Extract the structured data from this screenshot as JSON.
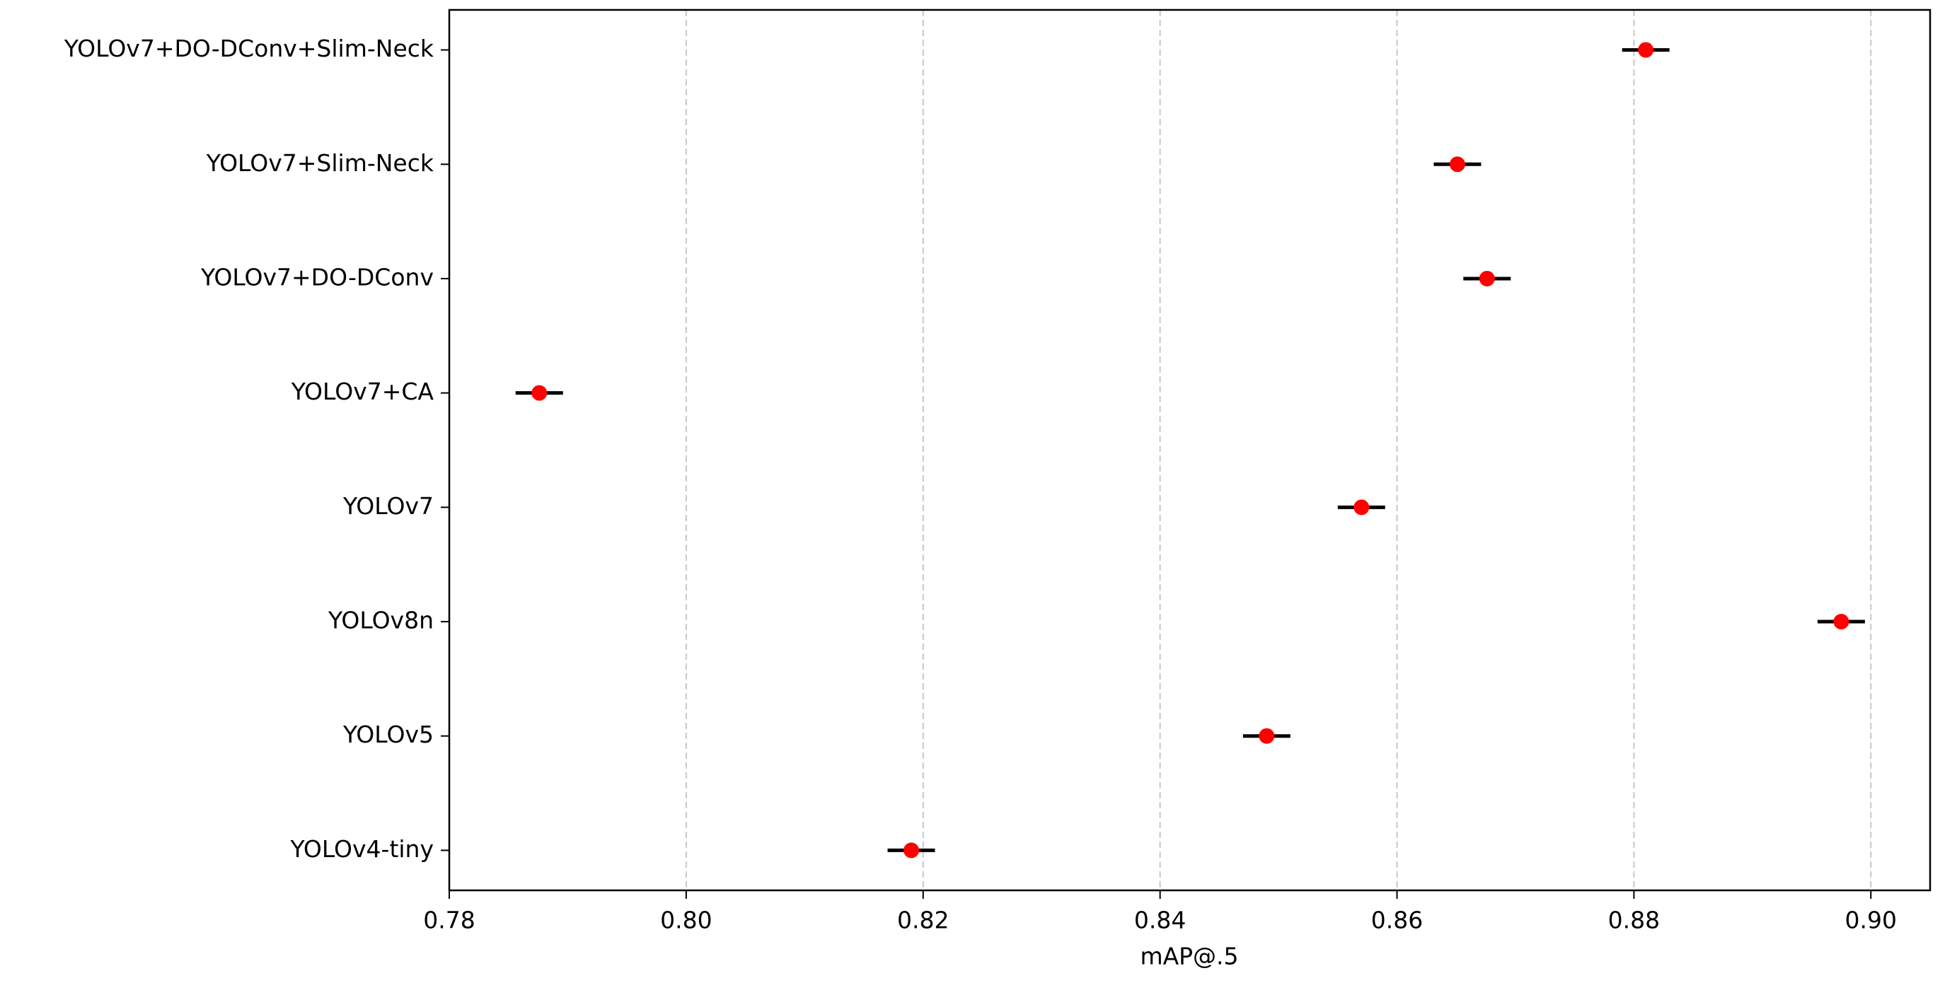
{
  "chart_data": {
    "type": "errorbar_h",
    "xlabel": "mAP@.5",
    "categories": [
      "YOLOv4-tiny",
      "YOLOv5",
      "YOLOv8n",
      "YOLOv7",
      "YOLOv7+CA",
      "YOLOv7+DO-DConv",
      "YOLOv7+Slim-Neck",
      "YOLOv7+DO-DConv+Slim-Neck"
    ],
    "values": [
      0.819,
      0.849,
      0.8975,
      0.857,
      0.7876,
      0.8676,
      0.8651,
      0.881
    ],
    "errors": [
      0.002,
      0.002,
      0.002,
      0.002,
      0.002,
      0.002,
      0.002,
      0.002
    ],
    "color": "#ff0000",
    "error_color": "#000000",
    "xlim": [
      0.78,
      0.905
    ],
    "xticks": [
      {
        "value": 0.78,
        "label": "0.78"
      },
      {
        "value": 0.8,
        "label": "0.80"
      },
      {
        "value": 0.82,
        "label": "0.82"
      },
      {
        "value": 0.84,
        "label": "0.84"
      },
      {
        "value": 0.86,
        "label": "0.86"
      },
      {
        "value": 0.88,
        "label": "0.88"
      },
      {
        "value": 0.9,
        "label": "0.90"
      }
    ],
    "grid": "x"
  }
}
